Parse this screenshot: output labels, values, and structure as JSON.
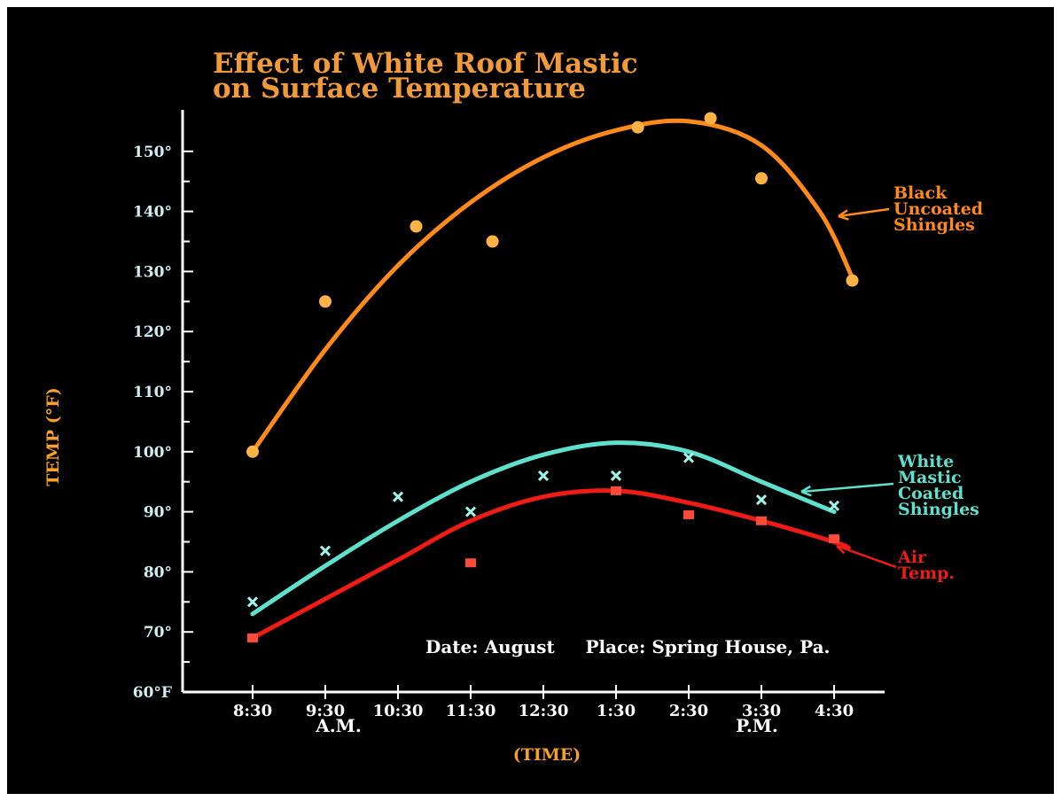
{
  "chart_data": {
    "type": "line",
    "title": "Effect of White Roof Mastic",
    "subtitle": "on Surface Temperature",
    "ylabel": "TEMP (°F)",
    "xlabel": "(TIME)",
    "ylim": [
      60,
      155
    ],
    "y_ticks": [
      "60°F",
      "70°",
      "80°",
      "90°",
      "100°",
      "110°",
      "120°",
      "130°",
      "140°",
      "150°"
    ],
    "categories": [
      "8:30",
      "9:30",
      "10:30",
      "11:30",
      "12:30",
      "1:30",
      "2:30",
      "3:30",
      "4:30"
    ],
    "period_labels": [
      "A.M.",
      "P.M."
    ],
    "annotation": "Date: August     Place: Spring House, Pa.",
    "grid": false,
    "series": [
      {
        "name": "Black Uncoated Shingles",
        "label_lines": [
          "Black",
          "Uncoated",
          "Shingles"
        ],
        "color": "#ff8a1a",
        "points": [
          {
            "x": 0,
            "y": 100
          },
          {
            "x": 1,
            "y": 125
          },
          {
            "x": 2.25,
            "y": 137.5
          },
          {
            "x": 3.3,
            "y": 135
          },
          {
            "x": 5.3,
            "y": 154
          },
          {
            "x": 6.3,
            "y": 155.5
          },
          {
            "x": 7,
            "y": 145.5
          },
          {
            "x": 8.25,
            "y": 128.5
          }
        ],
        "curve": [
          {
            "x": 0,
            "y": 100
          },
          {
            "x": 1,
            "y": 117
          },
          {
            "x": 2,
            "y": 131
          },
          {
            "x": 3,
            "y": 141.5
          },
          {
            "x": 4,
            "y": 149
          },
          {
            "x": 5,
            "y": 153.5
          },
          {
            "x": 6,
            "y": 155
          },
          {
            "x": 7,
            "y": 151
          },
          {
            "x": 7.8,
            "y": 140
          },
          {
            "x": 8.25,
            "y": 129
          }
        ]
      },
      {
        "name": "White Mastic Coated Shingles",
        "label_lines": [
          "White",
          "Mastic",
          "Coated",
          "Shingles"
        ],
        "color": "#5fe0cc",
        "points": [
          {
            "x": 0,
            "y": 75
          },
          {
            "x": 1,
            "y": 83.5
          },
          {
            "x": 2,
            "y": 92.5
          },
          {
            "x": 3,
            "y": 90
          },
          {
            "x": 4,
            "y": 96
          },
          {
            "x": 5,
            "y": 96
          },
          {
            "x": 6,
            "y": 99
          },
          {
            "x": 7,
            "y": 92
          },
          {
            "x": 8,
            "y": 91
          }
        ],
        "curve": [
          {
            "x": 0,
            "y": 73
          },
          {
            "x": 1,
            "y": 81
          },
          {
            "x": 2,
            "y": 88.5
          },
          {
            "x": 3,
            "y": 95
          },
          {
            "x": 4,
            "y": 99.5
          },
          {
            "x": 5,
            "y": 101.5
          },
          {
            "x": 6,
            "y": 100
          },
          {
            "x": 7,
            "y": 95
          },
          {
            "x": 8,
            "y": 90
          }
        ]
      },
      {
        "name": "Air Temp.",
        "label_lines": [
          "Air",
          "Temp."
        ],
        "color": "#ee1c14",
        "points": [
          {
            "x": 0,
            "y": 69
          },
          {
            "x": 3,
            "y": 81.5
          },
          {
            "x": 5,
            "y": 93.5
          },
          {
            "x": 6,
            "y": 89.5
          },
          {
            "x": 7,
            "y": 88.5
          },
          {
            "x": 8,
            "y": 85.5
          }
        ],
        "curve": [
          {
            "x": 0,
            "y": 69
          },
          {
            "x": 1,
            "y": 75.5
          },
          {
            "x": 2,
            "y": 82
          },
          {
            "x": 3,
            "y": 88.5
          },
          {
            "x": 4,
            "y": 92.5
          },
          {
            "x": 5,
            "y": 93.5
          },
          {
            "x": 6,
            "y": 91.5
          },
          {
            "x": 7,
            "y": 88.5
          },
          {
            "x": 8,
            "y": 85
          },
          {
            "x": 8.2,
            "y": 84
          }
        ]
      }
    ]
  }
}
